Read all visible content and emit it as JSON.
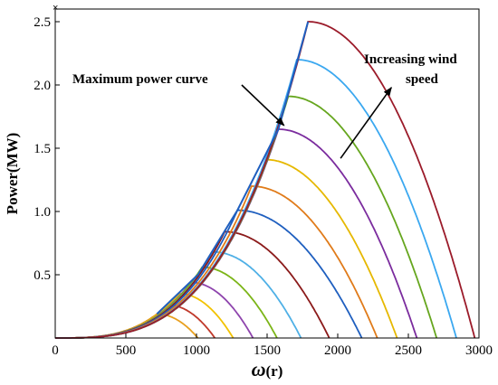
{
  "chart_data": {
    "type": "line",
    "title": "",
    "xlabel_symbol": "ω",
    "xlabel_unit": "(r)",
    "ylabel": "Power(MW)",
    "xlim": [
      0,
      3000
    ],
    "ylim": [
      0,
      2.6
    ],
    "x_ticks": [
      "0",
      "500",
      "1000",
      "1500",
      "2000",
      "2500",
      "3000"
    ],
    "y_ticks": [
      "0.5",
      "1.0",
      "1.5",
      "2.0",
      "2.5"
    ],
    "grid": false,
    "corner_mark": "×",
    "annotations": {
      "max_power_curve": "Maximum power curve",
      "wind_speed_line1": "Increasing wind",
      "wind_speed_line2": "speed"
    },
    "peaks": [
      {
        "omega": 720,
        "power": 0.19,
        "zero_at": 1010,
        "color": "#e8a020"
      },
      {
        "omega": 800,
        "power": 0.26,
        "zero_at": 1130,
        "color": "#c0392b"
      },
      {
        "omega": 880,
        "power": 0.35,
        "zero_at": 1260,
        "color": "#f2c200"
      },
      {
        "omega": 960,
        "power": 0.44,
        "zero_at": 1400,
        "color": "#8e44ad"
      },
      {
        "omega": 1040,
        "power": 0.56,
        "zero_at": 1570,
        "color": "#7cb518"
      },
      {
        "omega": 1120,
        "power": 0.68,
        "zero_at": 1740,
        "color": "#4fb0e6"
      },
      {
        "omega": 1200,
        "power": 0.84,
        "zero_at": 1940,
        "color": "#8b1a1a"
      },
      {
        "omega": 1290,
        "power": 1.01,
        "zero_at": 2170,
        "color": "#1f5fbf"
      },
      {
        "omega": 1390,
        "power": 1.2,
        "zero_at": 2280,
        "color": "#e07b1a"
      },
      {
        "omega": 1490,
        "power": 1.41,
        "zero_at": 2420,
        "color": "#e6b800"
      },
      {
        "omega": 1580,
        "power": 1.65,
        "zero_at": 2560,
        "color": "#7b2c9e"
      },
      {
        "omega": 1650,
        "power": 1.91,
        "zero_at": 2700,
        "color": "#66a61e"
      },
      {
        "omega": 1710,
        "power": 2.2,
        "zero_at": 2840,
        "color": "#3ba8f0"
      },
      {
        "omega": 1790,
        "power": 2.5,
        "zero_at": 2970,
        "color": "#9b1b2a"
      }
    ],
    "max_power_curve": {
      "color": "#1f5fbf",
      "points": [
        [
          720,
          0.19
        ],
        [
          1010,
          0.5
        ],
        [
          1290,
          1.01
        ],
        [
          1580,
          1.65
        ],
        [
          1790,
          2.5
        ]
      ]
    },
    "arrows": [
      {
        "name": "max-power-arrow",
        "from": [
          1320,
          2.0
        ],
        "to": [
          1620,
          1.68
        ]
      },
      {
        "name": "wind-speed-arrow",
        "from": [
          2020,
          1.42
        ],
        "to": [
          2380,
          1.98
        ]
      }
    ],
    "colors": {
      "axis": "#000000",
      "background": "#ffffff",
      "arrow": "#000000"
    }
  }
}
